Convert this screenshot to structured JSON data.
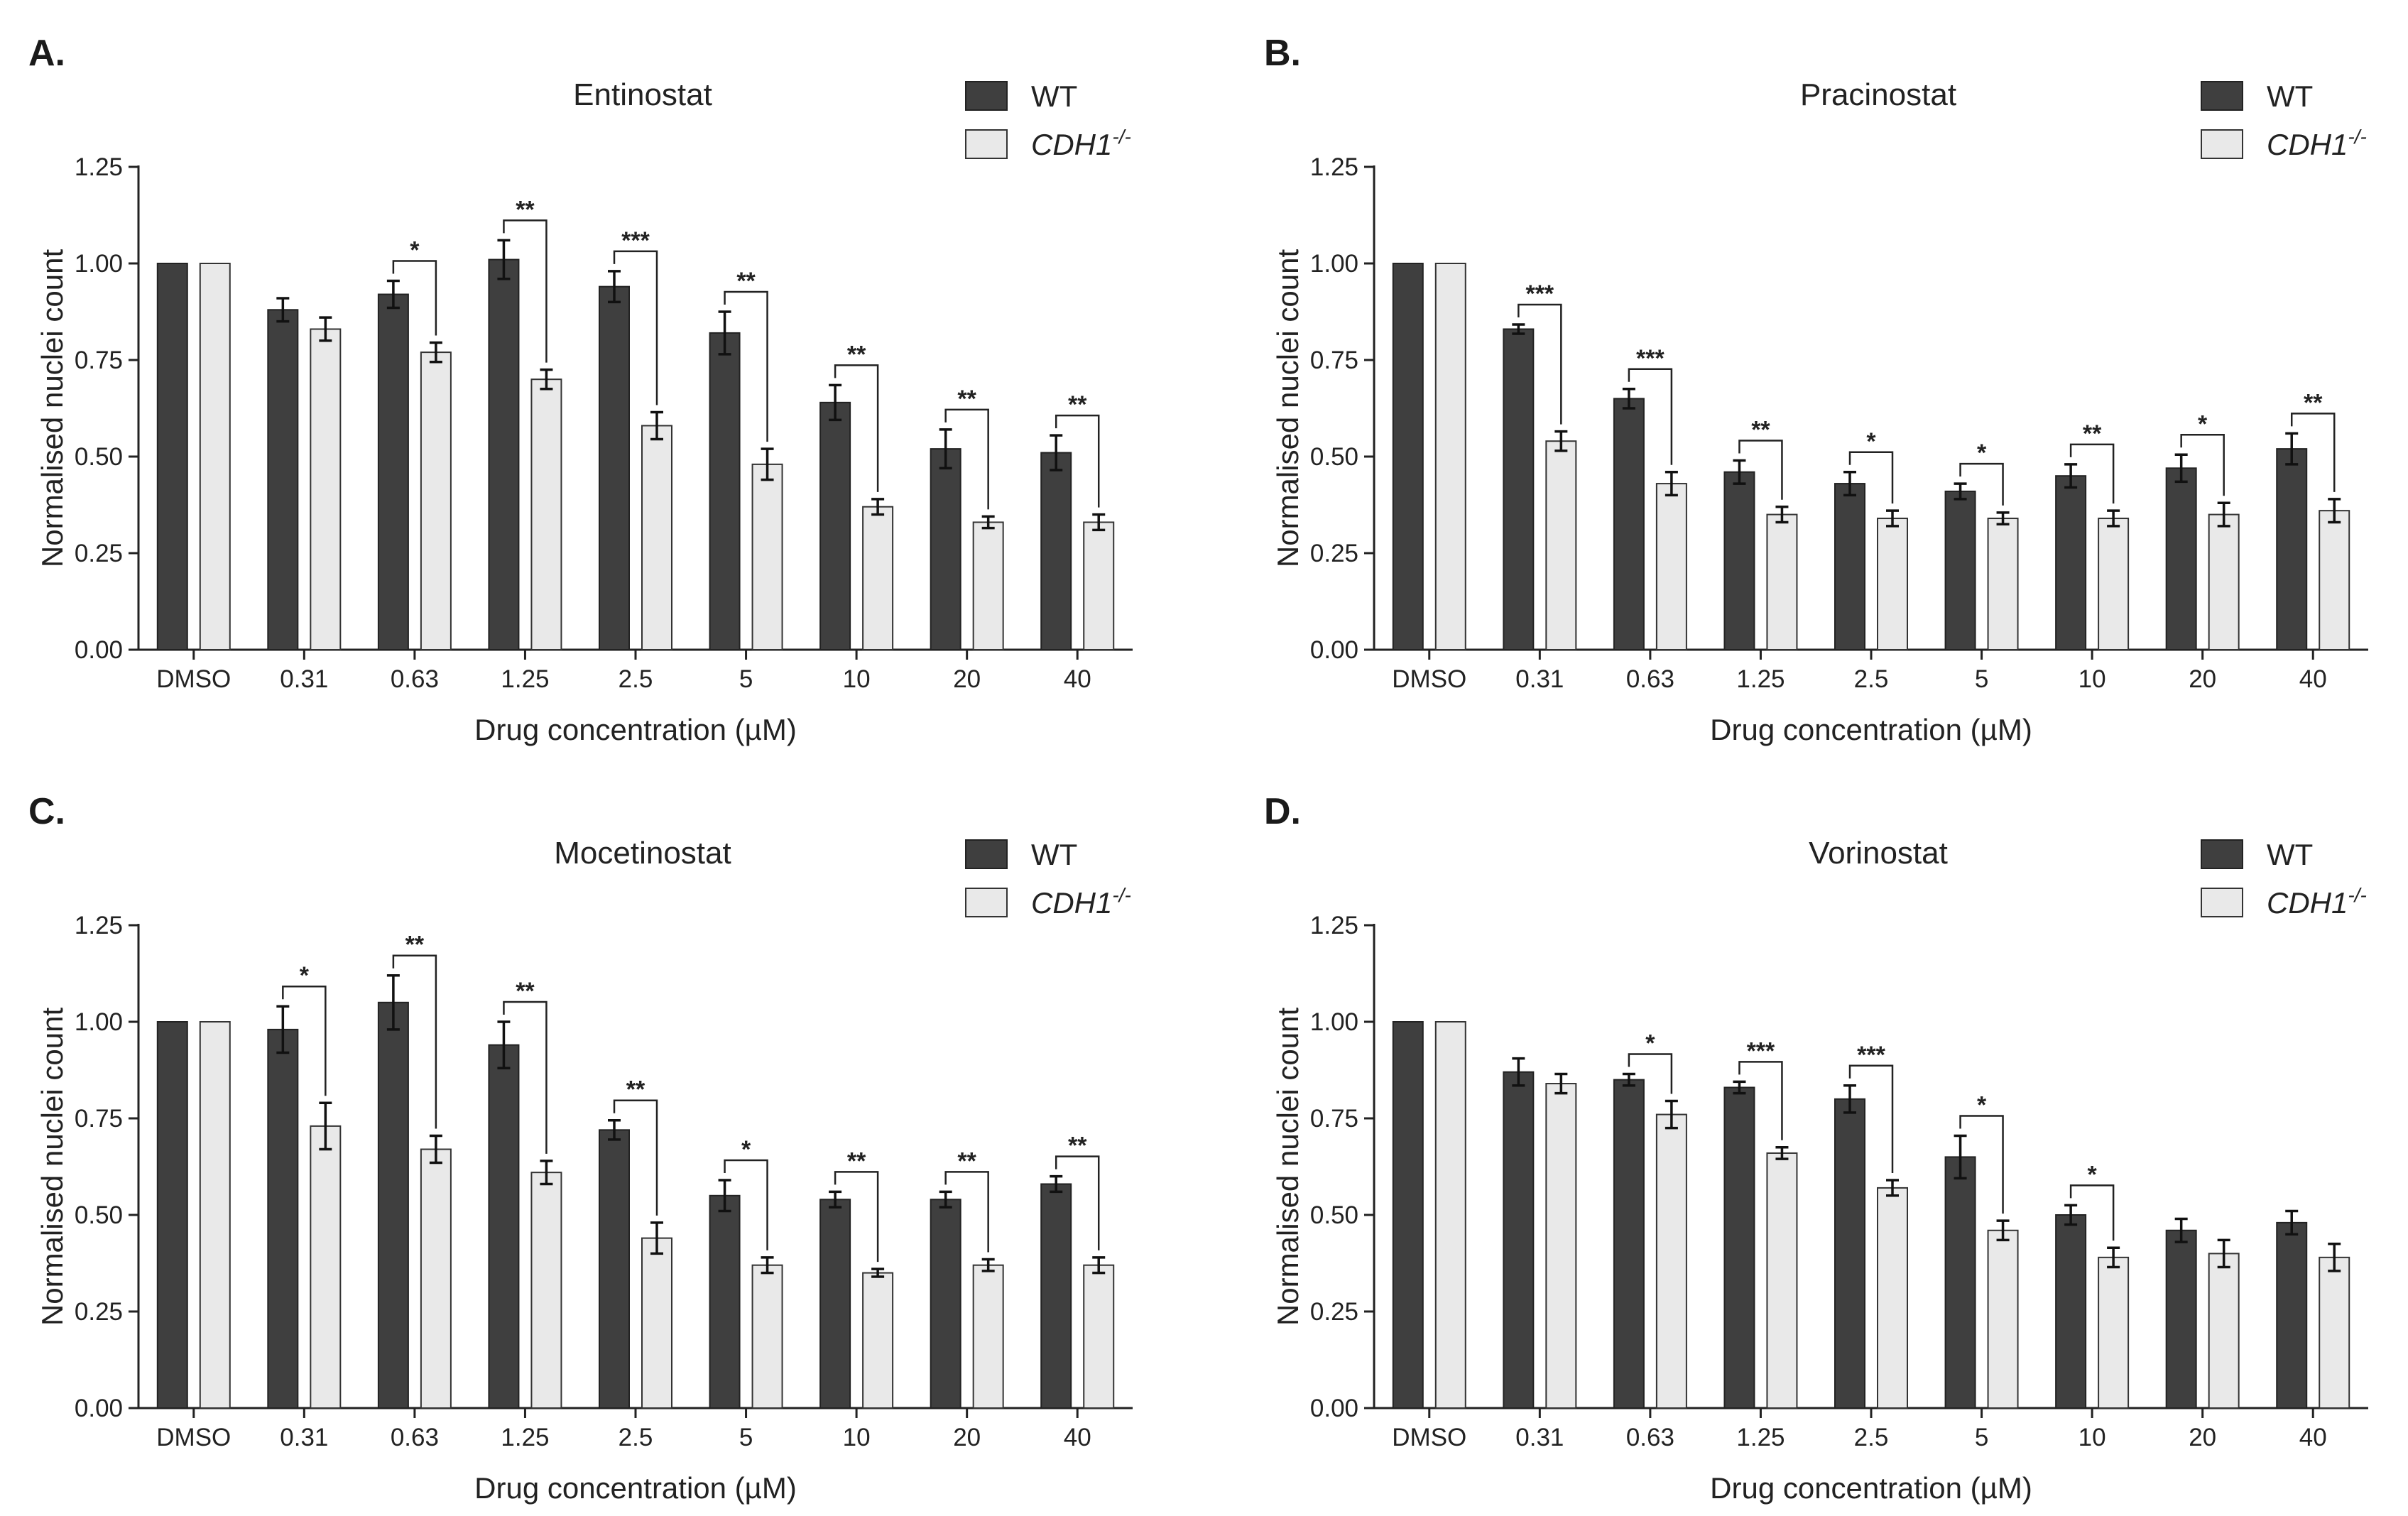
{
  "figure": {
    "legend": {
      "wt": "WT",
      "ko": "CDH1",
      "ko_sup": "-/-"
    },
    "colors": {
      "wt": "#3f3f3f",
      "ko": "#e9e9e9"
    }
  },
  "chart_data": [
    {
      "panel": "A.",
      "type": "bar",
      "title": "Entinostat",
      "xlabel": "Drug concentration (µM)",
      "ylabel": "Normalised nuclei count",
      "ylim": [
        0,
        1.25
      ],
      "yticks": [
        "0.00",
        "0.25",
        "0.50",
        "0.75",
        "1.00",
        "1.25"
      ],
      "categories": [
        "DMSO",
        "0.31",
        "0.63",
        "1.25",
        "2.5",
        "5",
        "10",
        "20",
        "40"
      ],
      "series": [
        {
          "name": "WT",
          "values": [
            1.0,
            0.88,
            0.92,
            1.01,
            0.94,
            0.82,
            0.64,
            0.52,
            0.51
          ],
          "errors": [
            0,
            0.03,
            0.035,
            0.05,
            0.04,
            0.055,
            0.045,
            0.05,
            0.045
          ]
        },
        {
          "name": "CDH1-/-",
          "values": [
            1.0,
            0.83,
            0.77,
            0.7,
            0.58,
            0.48,
            0.37,
            0.33,
            0.33
          ],
          "errors": [
            0,
            0.03,
            0.025,
            0.025,
            0.035,
            0.04,
            0.02,
            0.015,
            0.02
          ]
        }
      ],
      "significance": [
        {
          "category": "0.63",
          "label": "*"
        },
        {
          "category": "1.25",
          "label": "**"
        },
        {
          "category": "2.5",
          "label": "***"
        },
        {
          "category": "5",
          "label": "**"
        },
        {
          "category": "10",
          "label": "**"
        },
        {
          "category": "20",
          "label": "**"
        },
        {
          "category": "40",
          "label": "**"
        }
      ]
    },
    {
      "panel": "B.",
      "type": "bar",
      "title": "Pracinostat",
      "xlabel": "Drug concentration (µM)",
      "ylabel": "Normalised nuclei count",
      "ylim": [
        0,
        1.25
      ],
      "yticks": [
        "0.00",
        "0.25",
        "0.50",
        "0.75",
        "1.00",
        "1.25"
      ],
      "categories": [
        "DMSO",
        "0.31",
        "0.63",
        "1.25",
        "2.5",
        "5",
        "10",
        "20",
        "40"
      ],
      "series": [
        {
          "name": "WT",
          "values": [
            1.0,
            0.83,
            0.65,
            0.46,
            0.43,
            0.41,
            0.45,
            0.47,
            0.52
          ],
          "errors": [
            0,
            0.012,
            0.025,
            0.03,
            0.03,
            0.02,
            0.03,
            0.035,
            0.04
          ]
        },
        {
          "name": "CDH1-/-",
          "values": [
            1.0,
            0.54,
            0.43,
            0.35,
            0.34,
            0.34,
            0.34,
            0.35,
            0.36
          ],
          "errors": [
            0,
            0.025,
            0.03,
            0.02,
            0.02,
            0.015,
            0.02,
            0.03,
            0.03
          ]
        }
      ],
      "significance": [
        {
          "category": "0.31",
          "label": "***"
        },
        {
          "category": "0.63",
          "label": "***"
        },
        {
          "category": "1.25",
          "label": "**"
        },
        {
          "category": "2.5",
          "label": "*"
        },
        {
          "category": "5",
          "label": "*"
        },
        {
          "category": "10",
          "label": "**"
        },
        {
          "category": "20",
          "label": "*"
        },
        {
          "category": "40",
          "label": "**"
        }
      ]
    },
    {
      "panel": "C.",
      "type": "bar",
      "title": "Mocetinostat",
      "xlabel": "Drug concentration (µM)",
      "ylabel": "Normalised nuclei count",
      "ylim": [
        0,
        1.25
      ],
      "yticks": [
        "0.00",
        "0.25",
        "0.50",
        "0.75",
        "1.00",
        "1.25"
      ],
      "categories": [
        "DMSO",
        "0.31",
        "0.63",
        "1.25",
        "2.5",
        "5",
        "10",
        "20",
        "40"
      ],
      "series": [
        {
          "name": "WT",
          "values": [
            1.0,
            0.98,
            1.05,
            0.94,
            0.72,
            0.55,
            0.54,
            0.54,
            0.58
          ],
          "errors": [
            0,
            0.06,
            0.07,
            0.06,
            0.025,
            0.04,
            0.02,
            0.02,
            0.02
          ]
        },
        {
          "name": "CDH1-/-",
          "values": [
            1.0,
            0.73,
            0.67,
            0.61,
            0.44,
            0.37,
            0.35,
            0.37,
            0.37
          ],
          "errors": [
            0,
            0.06,
            0.035,
            0.03,
            0.04,
            0.02,
            0.01,
            0.015,
            0.02
          ]
        }
      ],
      "significance": [
        {
          "category": "0.31",
          "label": "*"
        },
        {
          "category": "0.63",
          "label": "**"
        },
        {
          "category": "1.25",
          "label": "**"
        },
        {
          "category": "2.5",
          "label": "**"
        },
        {
          "category": "5",
          "label": "*"
        },
        {
          "category": "10",
          "label": "**"
        },
        {
          "category": "20",
          "label": "**"
        },
        {
          "category": "40",
          "label": "**"
        }
      ]
    },
    {
      "panel": "D.",
      "type": "bar",
      "title": "Vorinostat",
      "xlabel": "Drug concentration (µM)",
      "ylabel": "Normalised nuclei count",
      "ylim": [
        0,
        1.25
      ],
      "yticks": [
        "0.00",
        "0.25",
        "0.50",
        "0.75",
        "1.00",
        "1.25"
      ],
      "categories": [
        "DMSO",
        "0.31",
        "0.63",
        "1.25",
        "2.5",
        "5",
        "10",
        "20",
        "40"
      ],
      "series": [
        {
          "name": "WT",
          "values": [
            1.0,
            0.87,
            0.85,
            0.83,
            0.8,
            0.65,
            0.5,
            0.46,
            0.48
          ],
          "errors": [
            0,
            0.035,
            0.015,
            0.015,
            0.035,
            0.055,
            0.025,
            0.03,
            0.03
          ]
        },
        {
          "name": "CDH1-/-",
          "values": [
            1.0,
            0.84,
            0.76,
            0.66,
            0.57,
            0.46,
            0.39,
            0.4,
            0.39
          ],
          "errors": [
            0,
            0.025,
            0.035,
            0.015,
            0.02,
            0.025,
            0.025,
            0.035,
            0.035
          ]
        }
      ],
      "significance": [
        {
          "category": "0.63",
          "label": "*"
        },
        {
          "category": "1.25",
          "label": "***"
        },
        {
          "category": "2.5",
          "label": "***"
        },
        {
          "category": "5",
          "label": "*"
        },
        {
          "category": "10",
          "label": "*"
        }
      ]
    }
  ]
}
